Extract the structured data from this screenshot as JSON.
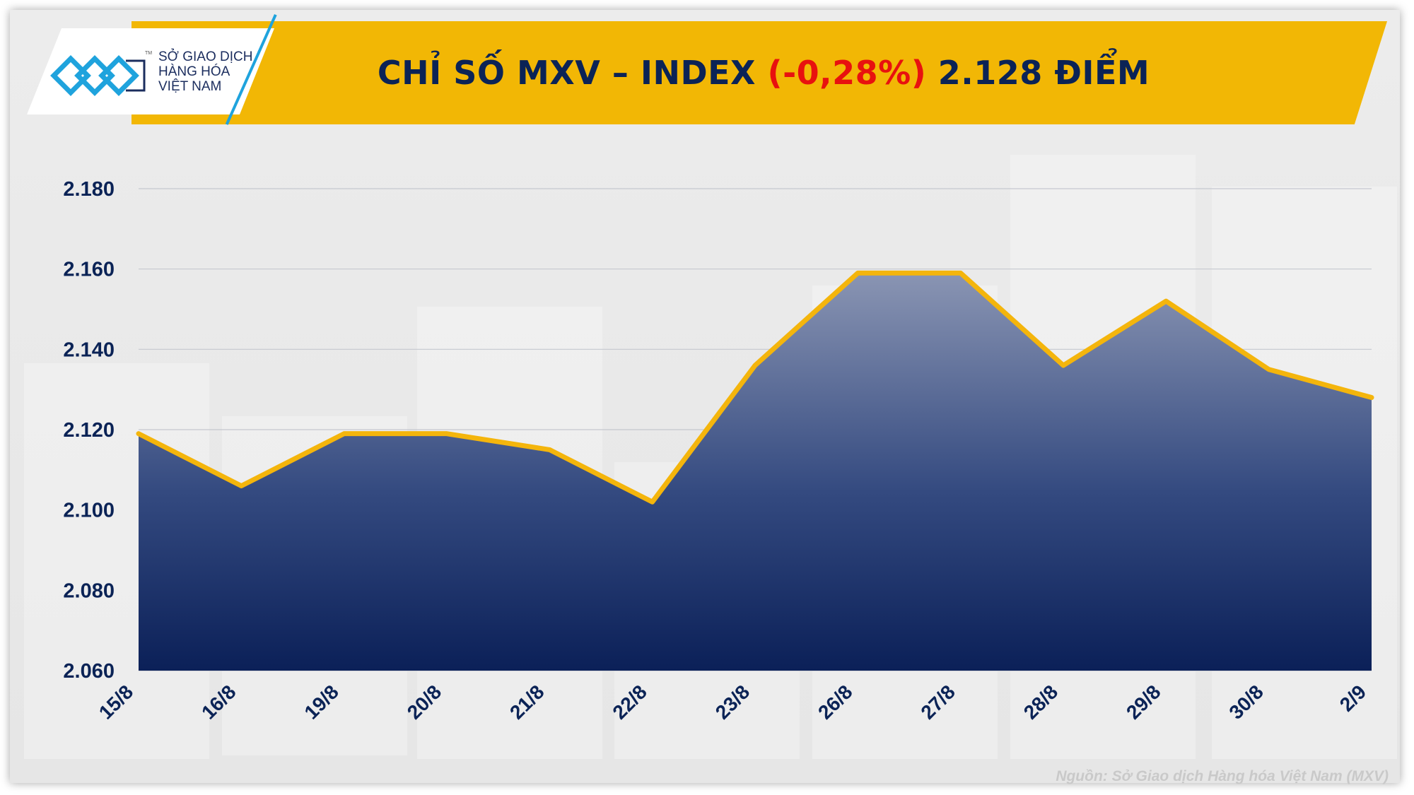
{
  "header": {
    "title_prefix": "CHỈ SỐ MXV – INDEX",
    "change": "(-0,28%)",
    "title_suffix": "2.128 ĐIỂM"
  },
  "logo": {
    "line1": "SỞ GIAO DỊCH",
    "line2": "HÀNG HÓA",
    "line3": "VIỆT NAM",
    "tm": "TM"
  },
  "source": "Nguồn: Sở Giao dịch Hàng hóa Việt Nam (MXV)",
  "colors": {
    "banner": "#f2b705",
    "title": "#0b2356",
    "negative": "#e8110f",
    "line": "#f4b50c",
    "area_top": "#8a95b3",
    "area_bottom": "#0b2058",
    "logo_blue": "#1fa3dd"
  },
  "chart_data": {
    "type": "area",
    "title": "CHỈ SỐ MXV – INDEX (-0,28%) 2.128 ĐIỂM",
    "categories": [
      "15/8",
      "16/8",
      "19/8",
      "20/8",
      "21/8",
      "22/8",
      "23/8",
      "26/8",
      "27/8",
      "28/8",
      "29/8",
      "30/8",
      "2/9"
    ],
    "series": [
      {
        "values": [
          2119,
          2106,
          2119,
          2119,
          2115,
          2102,
          2136,
          2159,
          2159,
          2136,
          2152,
          2135,
          2128
        ]
      }
    ],
    "ylim": [
      2060,
      2180
    ],
    "yticks": [
      2060,
      2080,
      2100,
      2120,
      2140,
      2160,
      2180
    ],
    "ytick_labels": [
      "2.060",
      "2.080",
      "2.100",
      "2.120",
      "2.140",
      "2.160",
      "2.180"
    ],
    "grid": true,
    "legend": "none"
  }
}
